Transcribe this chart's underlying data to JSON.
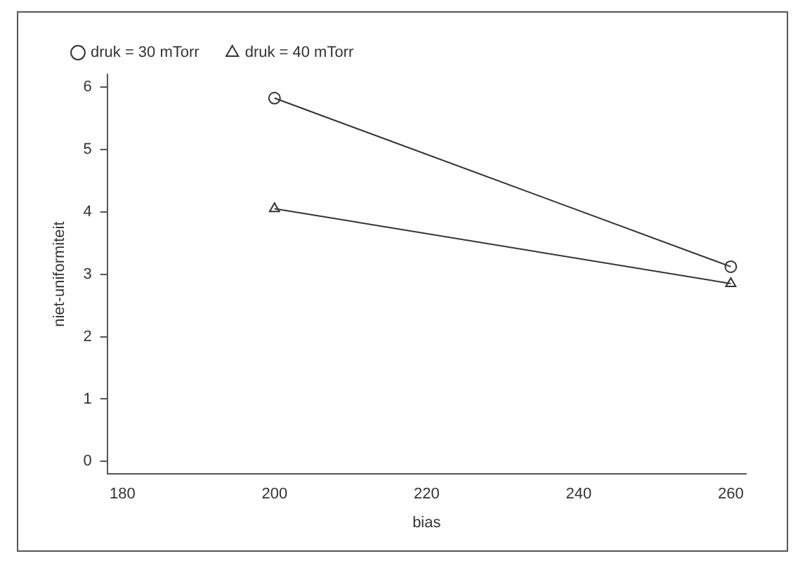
{
  "chart_data": {
    "type": "line",
    "xlabel": "bias",
    "ylabel": "niet-uniformiteit",
    "x": [
      200,
      260
    ],
    "series": [
      {
        "name": "druk = 30 mTorr",
        "color": "#333333",
        "values": [
          5.82,
          3.12
        ],
        "marker": "circle"
      },
      {
        "name": "druk = 40 mTorr",
        "color": "#333333",
        "values": [
          4.05,
          2.85
        ],
        "marker": "triangle"
      }
    ],
    "xlim": [
      178,
      262
    ],
    "xticks": [
      180,
      200,
      220,
      240,
      260
    ],
    "ylim": [
      -0.2,
      6.2
    ],
    "yticks": [
      0,
      1,
      2,
      3,
      4,
      5,
      6
    ],
    "grid": false,
    "legend": "top",
    "line_style": "solid"
  }
}
